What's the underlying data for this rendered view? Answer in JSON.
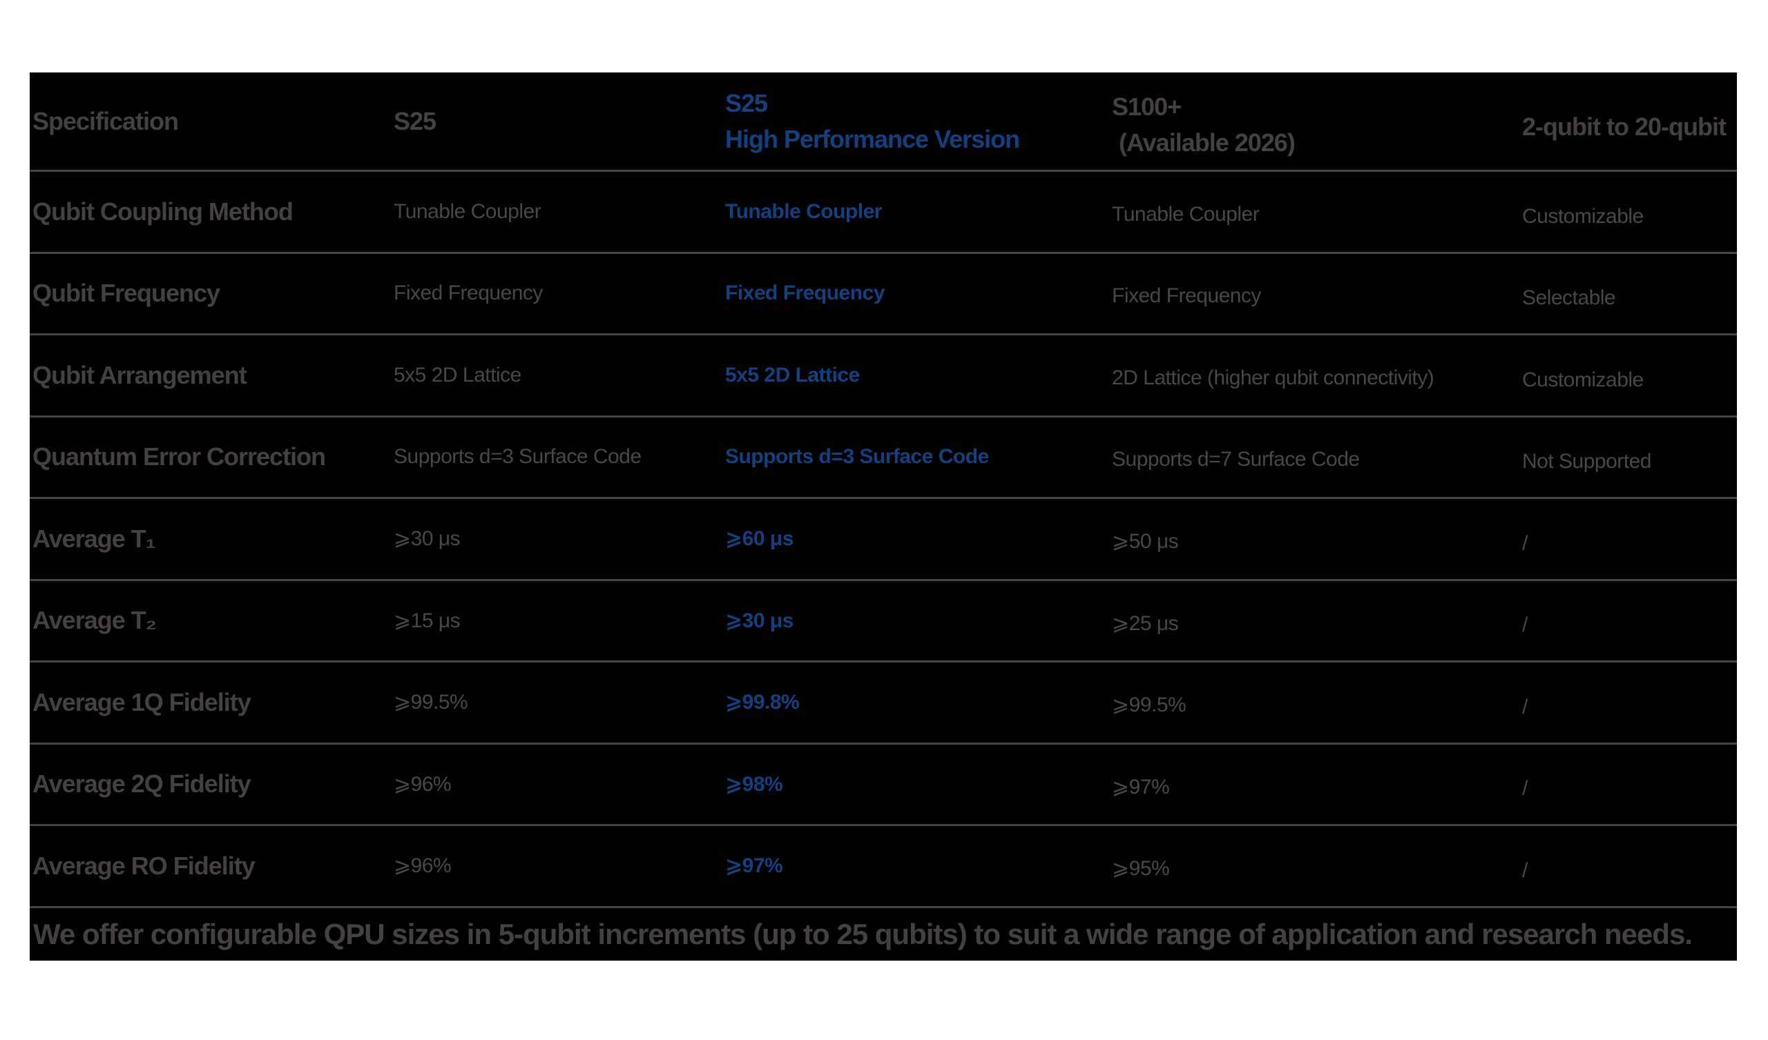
{
  "accent_blue": "#134180",
  "table": {
    "header": {
      "spec": "Specification",
      "s25": "S25",
      "hp_line1": "S25",
      "hp_line2": "High Performance Version",
      "s100_line1": "S100+",
      "s100_line2": "(Available 2026)",
      "custom": "2-qubit to 20-qubit"
    },
    "rows": [
      {
        "label": "Qubit Coupling Method",
        "s25": "Tunable Coupler",
        "s25_hp": "Tunable Coupler",
        "s100": "Tunable Coupler",
        "custom": "Customizable"
      },
      {
        "label": "Qubit Frequency",
        "s25": "Fixed Frequency",
        "s25_hp": "Fixed Frequency",
        "s100": "Fixed Frequency",
        "custom": "Selectable"
      },
      {
        "label": "Qubit Arrangement",
        "s25": "5x5 2D Lattice",
        "s25_hp": "5x5 2D Lattice",
        "s100": "2D Lattice (higher qubit connectivity)",
        "custom": "Customizable"
      },
      {
        "label": "Quantum Error Correction",
        "s25": "Supports d=3 Surface Code",
        "s25_hp": "Supports d=3 Surface Code",
        "s100": "Supports d=7 Surface Code",
        "custom": "Not Supported"
      },
      {
        "label": "Average T₁",
        "s25": "⩾30 μs",
        "s25_hp": "⩾60 μs",
        "s100": "⩾50 μs",
        "custom": "/"
      },
      {
        "label": "Average T₂",
        "s25": "⩾15 μs",
        "s25_hp": "⩾30 μs",
        "s100": "⩾25 μs",
        "custom": "/"
      },
      {
        "label": "Average 1Q Fidelity",
        "s25": "⩾99.5%",
        "s25_hp": "⩾99.8%",
        "s100": "⩾99.5%",
        "custom": "/"
      },
      {
        "label": "Average 2Q Fidelity",
        "s25": "⩾96%",
        "s25_hp": "⩾98%",
        "s100": "⩾97%",
        "custom": "/"
      },
      {
        "label": "Average RO Fidelity",
        "s25": "⩾96%",
        "s25_hp": "⩾97%",
        "s100": "⩾95%",
        "custom": "/"
      }
    ],
    "footer": "We offer configurable QPU sizes in 5-qubit increments (up to 25 qubits) to suit a wide range of application and research needs."
  }
}
